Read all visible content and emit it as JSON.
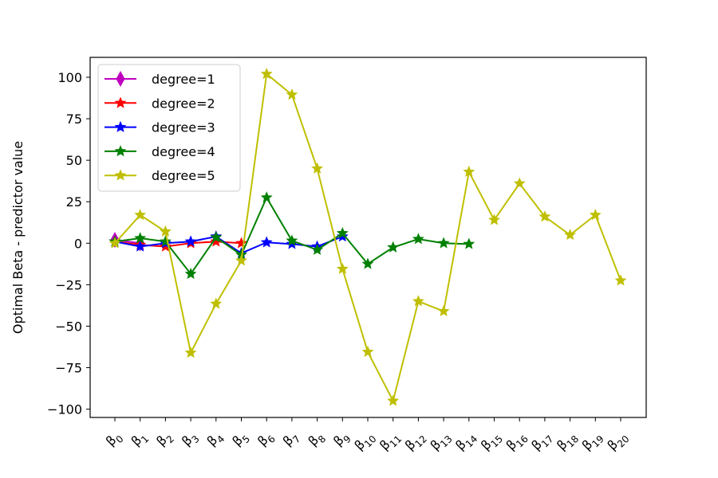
{
  "chart_data": {
    "type": "line",
    "ylabel": "Optimal Beta - predictor value",
    "xlabel": "",
    "ylim": [
      -105,
      112
    ],
    "yticks": [
      100,
      75,
      50,
      25,
      0,
      -25,
      -50,
      -75,
      -100
    ],
    "xticklabels": [
      "0",
      "1",
      "2",
      "3",
      "4",
      "5",
      "6",
      "7",
      "8",
      "9",
      "10",
      "11",
      "12",
      "13",
      "14",
      "15",
      "16",
      "17",
      "18",
      "19",
      "20"
    ],
    "xtick_prefix": "β",
    "legend_placement": "upper-left",
    "grid": false,
    "series": [
      {
        "name": "degree=1",
        "color": "#bf00bf",
        "marker": "thin-diamond",
        "values": [
          2,
          0
        ]
      },
      {
        "name": "degree=2",
        "color": "#ff0000",
        "marker": "star",
        "values": [
          1,
          -1,
          -2,
          0,
          1,
          0
        ]
      },
      {
        "name": "degree=3",
        "color": "#0000ff",
        "marker": "star",
        "values": [
          1,
          -2,
          0,
          1,
          4,
          -6,
          0.5,
          -0.5,
          -2,
          4
        ]
      },
      {
        "name": "degree=4",
        "color": "#008000",
        "marker": "star",
        "values": [
          1,
          3,
          1,
          -18.5,
          3.5,
          -7,
          27.5,
          1.5,
          -4,
          6,
          -12.5,
          -2.5,
          2.5,
          0,
          -0.5
        ]
      },
      {
        "name": "degree=5",
        "color": "#bfbf00",
        "marker": "star",
        "values": [
          0,
          17,
          7,
          -66,
          -36.5,
          -10.5,
          102,
          89.5,
          45,
          -15.5,
          -65.5,
          -95,
          -35,
          -41,
          43,
          14,
          36,
          16,
          5,
          17,
          -22.5
        ]
      }
    ]
  }
}
